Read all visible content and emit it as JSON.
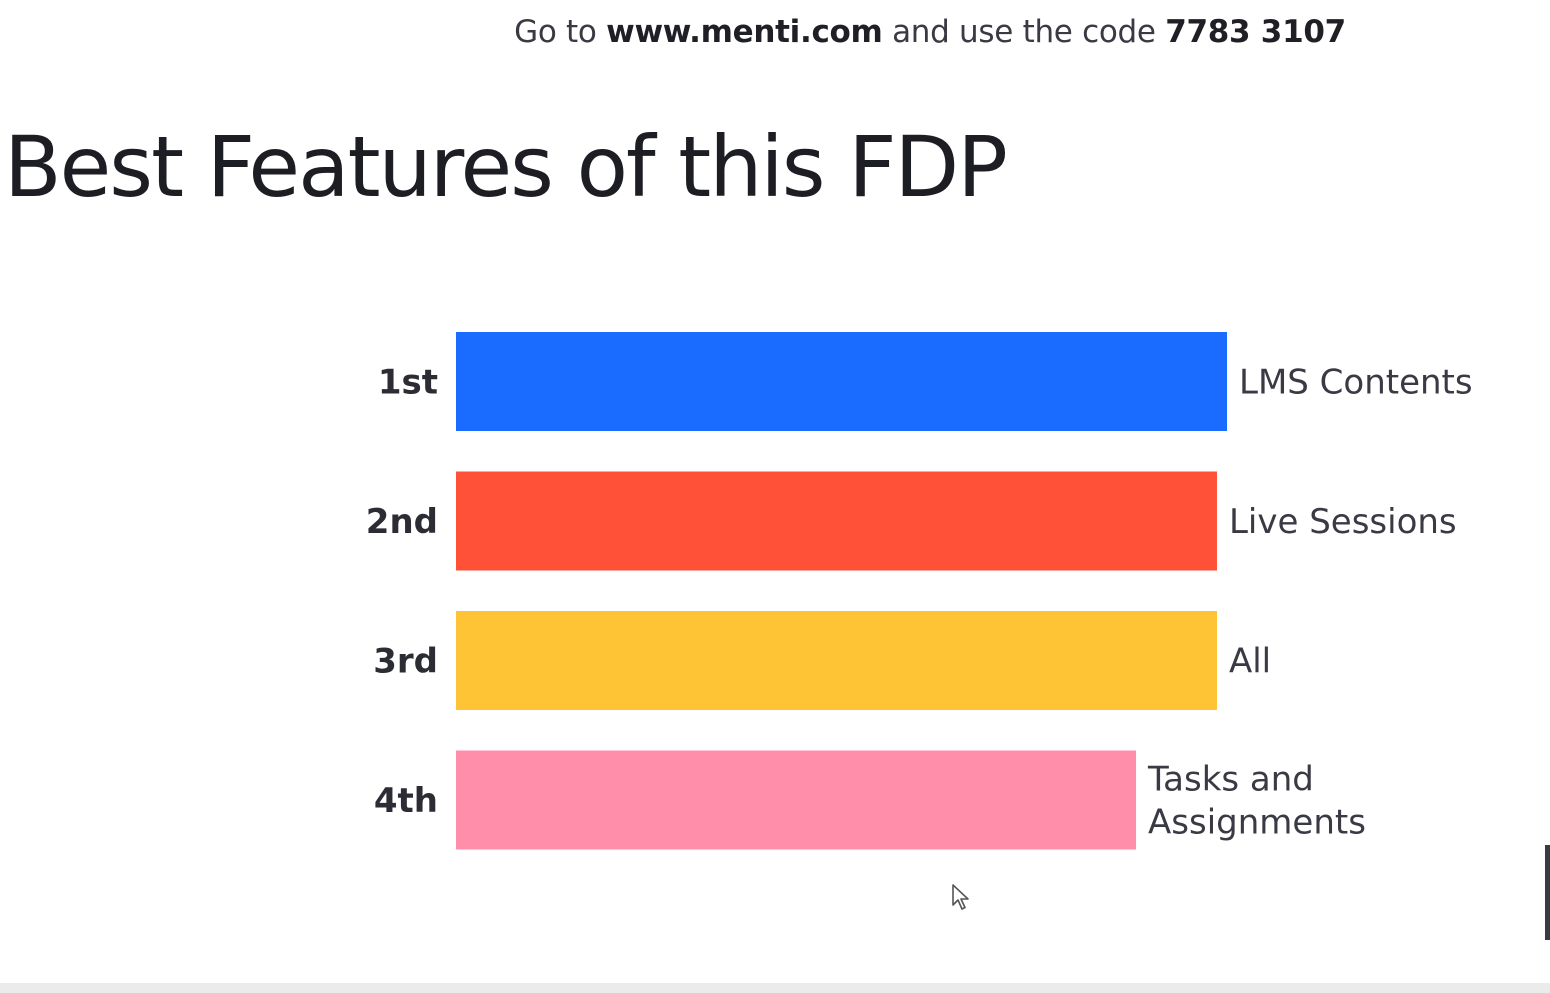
{
  "join": {
    "prefix": "Go to ",
    "url": "www.menti.com",
    "middle": " and use the code ",
    "code": "7783 3107"
  },
  "chart_data": {
    "type": "bar",
    "orientation": "horizontal",
    "title": "Best Features of this FDP",
    "ranks": [
      "1st",
      "2nd",
      "3rd",
      "4th"
    ],
    "categories": [
      "LMS Contents",
      "Live Sessions",
      "All",
      "Tasks and Assignments"
    ],
    "category_lines": [
      [
        "LMS Contents"
      ],
      [
        "Live Sessions"
      ],
      [
        "All"
      ],
      [
        "Tasks and",
        "Assignments"
      ]
    ],
    "values": [
      100,
      98.7,
      98.7,
      88.2
    ],
    "xlim": [
      0,
      100
    ],
    "colors": [
      "#196cff",
      "#ff5138",
      "#ffc435",
      "#ff8eab"
    ],
    "grid": false,
    "legend": "none"
  }
}
